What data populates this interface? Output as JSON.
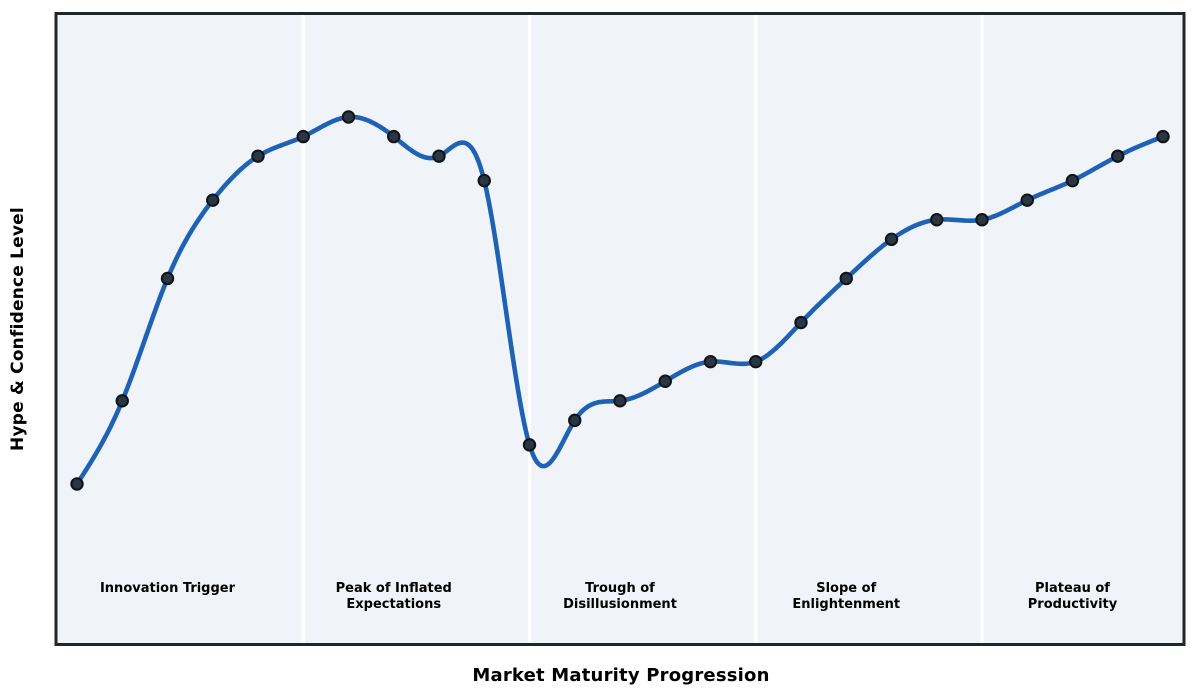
{
  "chart_data": {
    "type": "line",
    "title": "",
    "xlabel": "Market Maturity Progression",
    "ylabel": "Hype & Confidence Level",
    "x": [
      0,
      1,
      2,
      3,
      4,
      5,
      6,
      7,
      8,
      9,
      10,
      11,
      12,
      13,
      14,
      15,
      16,
      17,
      18,
      19,
      20,
      21,
      22,
      23,
      24
    ],
    "values": [
      20,
      37,
      62,
      78,
      87,
      91,
      95,
      91,
      87,
      82,
      28,
      33,
      37,
      41,
      45,
      45,
      53,
      62,
      70,
      74,
      74,
      78,
      82,
      87,
      91
    ],
    "x_range": [
      -0.46,
      24.46
    ],
    "smoothing": "cubic-spline",
    "ticks_visible": false,
    "grid": false,
    "legend": null,
    "marker_shape": "circle",
    "phases": [
      {
        "label": "Innovation Trigger",
        "center_x": 2
      },
      {
        "label": "Peak of Inflated\nExpectations",
        "center_x": 7
      },
      {
        "label": "Trough of\nDisillusionment",
        "center_x": 12
      },
      {
        "label": "Slope of\nEnlightenment",
        "center_x": 17
      },
      {
        "label": "Plateau of\nProductivity",
        "center_x": 22
      }
    ],
    "phase_boundaries_x": [
      5,
      10,
      15,
      20
    ],
    "colors": {
      "line": "#1f62b3",
      "marker_fill": "#2b3644",
      "marker_edge": "#0e1319",
      "plot_background": "#f0f4f8",
      "separator": "#ffffff",
      "border": "#22262a",
      "text": "#000000",
      "page_background": "#ffffff"
    }
  }
}
